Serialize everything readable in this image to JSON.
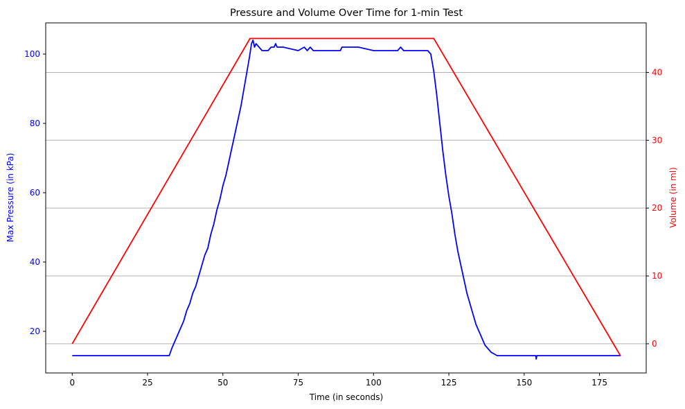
{
  "chart_data": {
    "type": "line",
    "title": "Pressure and Volume Over Time for 1-min Test",
    "xlabel": "Time (in seconds)",
    "ylabel_left": "Max Pressure (in kPa)",
    "ylabel_right": "Volume (in ml)",
    "xlim": [
      -8.8,
      190.5
    ],
    "ylim_left": [
      8,
      109
    ],
    "ylim_right": [
      -4.3,
      47.3
    ],
    "x_ticks": [
      0,
      25,
      50,
      75,
      100,
      125,
      150,
      175
    ],
    "y_ticks_left": [
      20,
      40,
      60,
      80,
      100
    ],
    "y_ticks_right": [
      0,
      10,
      20,
      30,
      40
    ],
    "grid": "horizontal, aligned to right axis ticks",
    "colors": {
      "pressure": "#0000ff",
      "volume": "#ff0000",
      "grid": "#b0b0b0",
      "axis": "#000000"
    },
    "series": [
      {
        "name": "Max Pressure (in kPa)",
        "axis": "left",
        "color": "#0000ff",
        "x": [
          0,
          32.2,
          33,
          34,
          35,
          36,
          37,
          38,
          39,
          40,
          41,
          42,
          43,
          44,
          45,
          46,
          47,
          48,
          49,
          50,
          51,
          52,
          53,
          54,
          55,
          56,
          57,
          58,
          58.8,
          59.5,
          60,
          60.5,
          61,
          62,
          63,
          65,
          66,
          67,
          67.5,
          68,
          70,
          75,
          77,
          78,
          79,
          80,
          85,
          89,
          89.5,
          90,
          95,
          100,
          105,
          108,
          109,
          110,
          115,
          118,
          119,
          120,
          121,
          122,
          123,
          124,
          125,
          126,
          127,
          128,
          129,
          130,
          131,
          132,
          133,
          134,
          135,
          136,
          137,
          138,
          139,
          140,
          141,
          145,
          150,
          153.8,
          154,
          154.2,
          160,
          170,
          182
        ],
        "y": [
          13,
          13,
          15,
          17,
          19,
          21,
          23,
          26,
          28,
          31,
          33,
          36,
          39,
          42,
          44,
          48,
          51,
          55,
          58,
          62,
          65,
          69,
          73,
          77,
          81,
          85,
          90,
          95,
          99,
          103,
          104,
          102,
          103,
          102,
          101,
          101,
          102,
          102,
          103,
          102,
          102,
          101,
          102,
          101,
          102,
          101,
          101,
          101,
          102,
          102,
          102,
          101,
          101,
          101,
          102,
          101,
          101,
          101,
          100,
          95,
          88,
          80,
          72,
          65,
          59,
          54,
          48,
          43,
          39,
          35,
          31,
          28,
          25,
          22,
          20,
          18,
          16,
          15,
          14,
          13.5,
          13,
          13,
          13,
          13,
          12,
          13,
          13,
          13,
          13
        ]
      },
      {
        "name": "Volume (in ml)",
        "axis": "right",
        "color": "#ff0000",
        "x": [
          0,
          59,
          120,
          182
        ],
        "y": [
          0,
          45,
          45,
          -1.8
        ]
      }
    ]
  }
}
